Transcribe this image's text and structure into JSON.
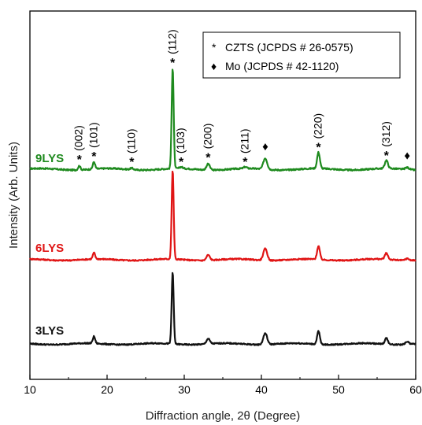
{
  "chart_data": {
    "type": "line",
    "xlabel": "Diffraction angle, 2θ (Degree)",
    "ylabel": "Intensity (Arb. Units)",
    "xlim": [
      10,
      60
    ],
    "xticks": [
      10,
      20,
      30,
      40,
      50,
      60
    ],
    "yticks_shown": false,
    "grid": false,
    "legend_placement": "top-right",
    "legend": [
      {
        "marker": "*",
        "label": "CZTS (JCPDS # 26-0575)"
      },
      {
        "marker": "♦",
        "label": "Mo (JCPDS # 42-1120)"
      }
    ],
    "series": [
      {
        "name": "9LYS",
        "color": "#1e8a1e",
        "relative_baseline": 0.73,
        "peaks": [
          {
            "x": 16.4,
            "h": 0.04,
            "w": 0.15
          },
          {
            "x": 18.3,
            "h": 0.07,
            "w": 0.15
          },
          {
            "x": 23.2,
            "h": 0.015,
            "w": 0.2
          },
          {
            "x": 28.5,
            "h": 1.0,
            "w": 0.13
          },
          {
            "x": 29.6,
            "h": 0.015,
            "w": 0.2
          },
          {
            "x": 33.1,
            "h": 0.06,
            "w": 0.22
          },
          {
            "x": 37.9,
            "h": 0.015,
            "w": 0.2
          },
          {
            "x": 40.5,
            "h": 0.11,
            "w": 0.25
          },
          {
            "x": 47.4,
            "h": 0.16,
            "w": 0.18
          },
          {
            "x": 56.2,
            "h": 0.08,
            "w": 0.2
          },
          {
            "x": 58.9,
            "h": 0.02,
            "w": 0.25
          }
        ]
      },
      {
        "name": "6LYS",
        "color": "#e01515",
        "relative_baseline": 0.0,
        "peaks": [
          {
            "x": 18.3,
            "h": 0.07,
            "w": 0.15
          },
          {
            "x": 28.5,
            "h": 1.0,
            "w": 0.13
          },
          {
            "x": 33.1,
            "h": 0.06,
            "w": 0.22
          },
          {
            "x": 40.5,
            "h": 0.13,
            "w": 0.25
          },
          {
            "x": 47.4,
            "h": 0.15,
            "w": 0.18
          },
          {
            "x": 56.2,
            "h": 0.07,
            "w": 0.2
          },
          {
            "x": 58.9,
            "h": 0.02,
            "w": 0.25
          }
        ]
      },
      {
        "name": "3LYS",
        "color": "#111111",
        "relative_baseline": 0.0,
        "peaks": [
          {
            "x": 18.3,
            "h": 0.08,
            "w": 0.15
          },
          {
            "x": 28.5,
            "h": 0.83,
            "w": 0.13
          },
          {
            "x": 33.1,
            "h": 0.06,
            "w": 0.22
          },
          {
            "x": 40.5,
            "h": 0.13,
            "w": 0.25
          },
          {
            "x": 47.4,
            "h": 0.15,
            "w": 0.18
          },
          {
            "x": 56.2,
            "h": 0.07,
            "w": 0.2
          },
          {
            "x": 58.9,
            "h": 0.03,
            "w": 0.25
          }
        ]
      }
    ],
    "peak_annotations": [
      {
        "x": 16.4,
        "marker": "*",
        "label": "(002)"
      },
      {
        "x": 18.3,
        "marker": "*",
        "label": "(101)"
      },
      {
        "x": 23.2,
        "marker": "*",
        "label": "(110)"
      },
      {
        "x": 28.5,
        "marker": "*",
        "label": "(112)"
      },
      {
        "x": 29.6,
        "marker": "*",
        "label": "(103)"
      },
      {
        "x": 33.1,
        "marker": "*",
        "label": "(200)"
      },
      {
        "x": 37.9,
        "marker": "*",
        "label": "(211)"
      },
      {
        "x": 40.5,
        "marker": "♦",
        "label": ""
      },
      {
        "x": 47.4,
        "marker": "*",
        "label": "(220)"
      },
      {
        "x": 56.2,
        "marker": "*",
        "label": "(312)"
      },
      {
        "x": 58.9,
        "marker": "♦",
        "label": ""
      }
    ]
  }
}
